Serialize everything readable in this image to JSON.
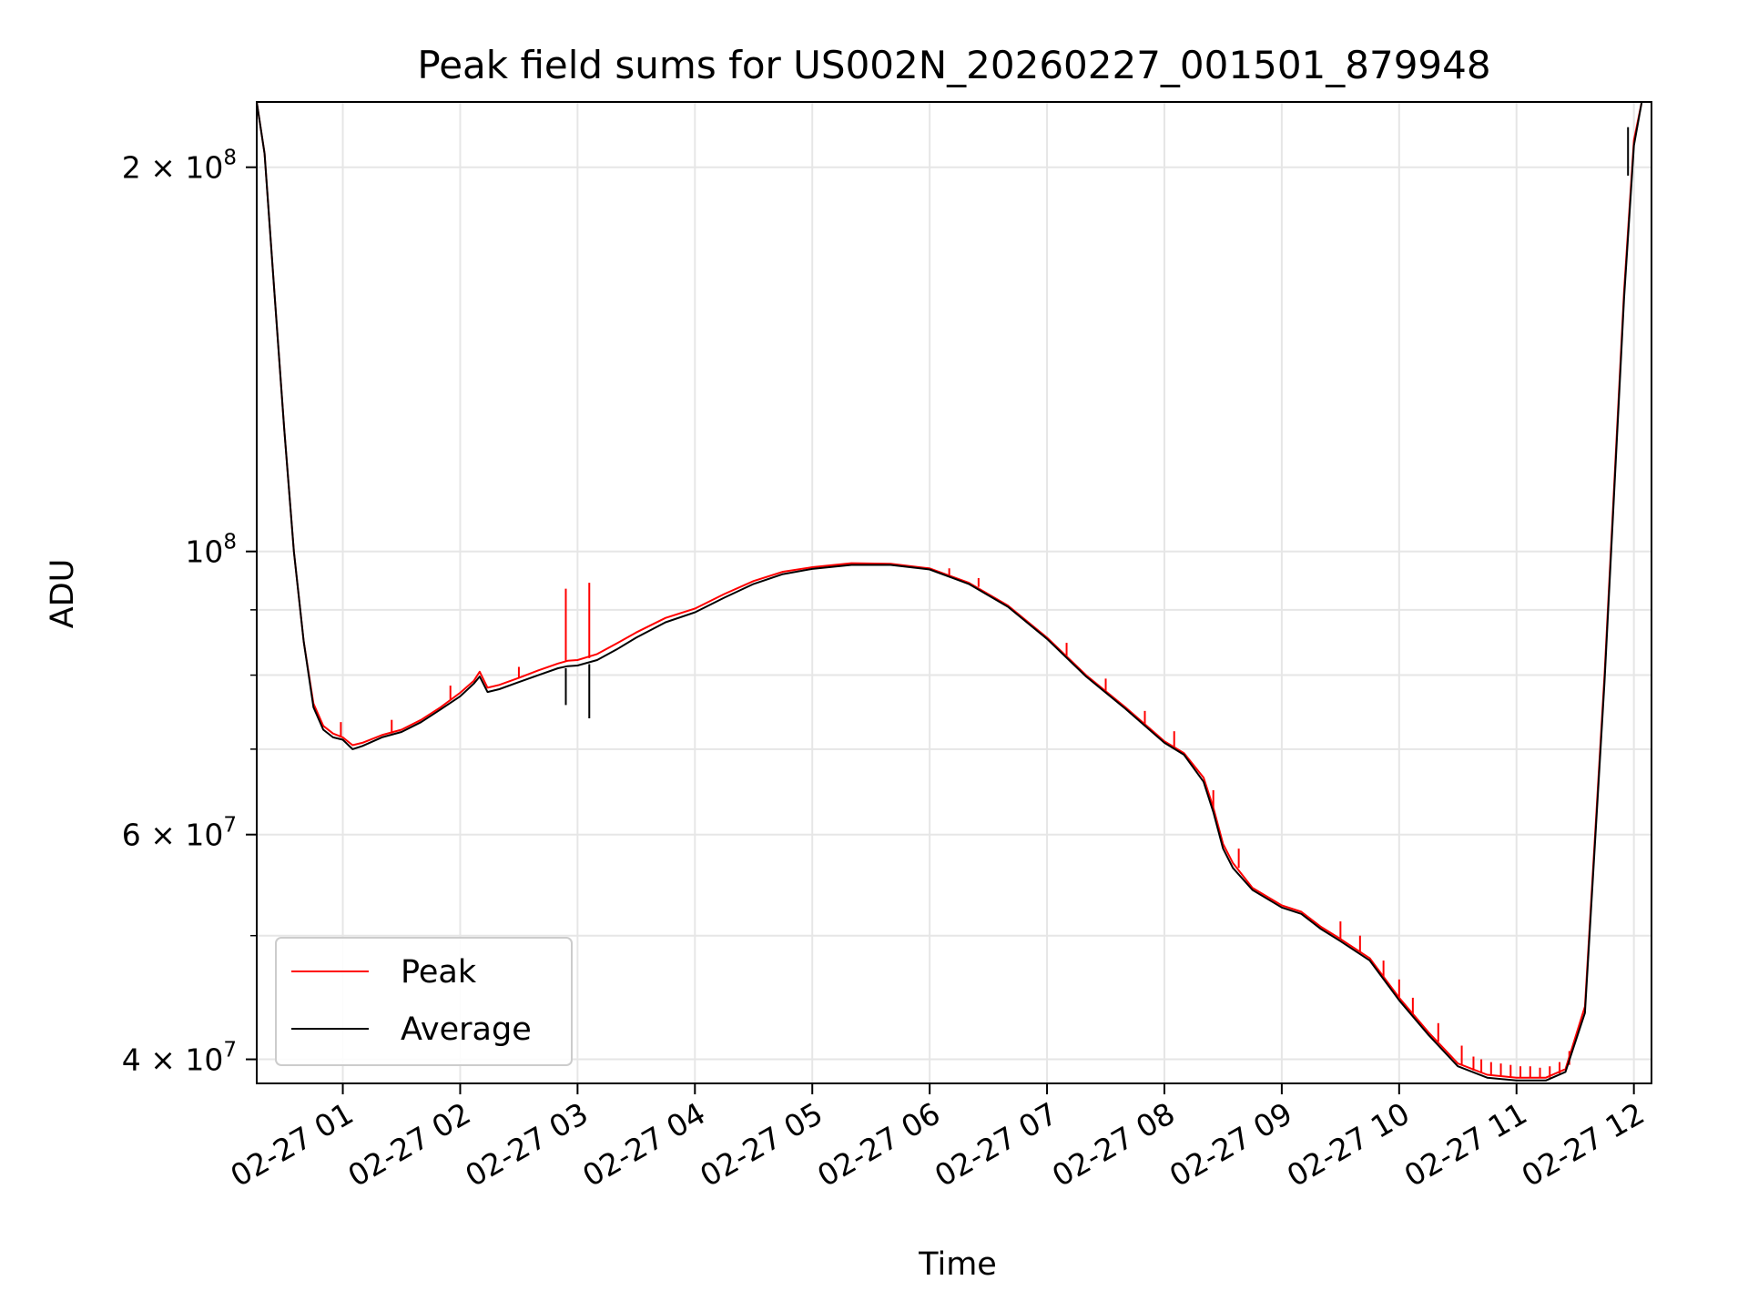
{
  "chart_data": {
    "type": "line",
    "title": "Peak field sums for US002N_20260227_001501_879948",
    "xlabel": "Time",
    "ylabel": "ADU",
    "y_scale": "log",
    "grid": true,
    "legend_position": "lower-left",
    "x_ticks": [
      "02-27 01",
      "02-27 02",
      "02-27 03",
      "02-27 04",
      "02-27 05",
      "02-27 06",
      "02-27 07",
      "02-27 08",
      "02-27 09",
      "02-27 10",
      "02-27 11",
      "02-27 12"
    ],
    "y_ticks": [
      {
        "value": 40000000,
        "label": "4 × 10",
        "exp": "7"
      },
      {
        "value": 60000000,
        "label": "6 × 10",
        "exp": "7"
      },
      {
        "value": 100000000,
        "label": "10",
        "exp": "8"
      },
      {
        "value": 200000000,
        "label": "2 × 10",
        "exp": "8"
      }
    ],
    "x_range": [
      "02-27 00:16",
      "02-27 12:09"
    ],
    "ylim": [
      38300000,
      225000000
    ],
    "series": [
      {
        "name": "Peak",
        "color": "#ff0000",
        "points": [
          [
            "02-27 00:16",
            225000000
          ],
          [
            "02-27 00:20",
            205000000
          ],
          [
            "02-27 00:25",
            160000000
          ],
          [
            "02-27 00:30",
            125000000
          ],
          [
            "02-27 00:35",
            100000000
          ],
          [
            "02-27 00:40",
            85000000
          ],
          [
            "02-27 00:45",
            76000000
          ],
          [
            "02-27 00:50",
            73000000
          ],
          [
            "02-27 00:55",
            72000000
          ],
          [
            "02-27 01:00",
            71500000
          ],
          [
            "02-27 01:05",
            70500000
          ],
          [
            "02-27 01:10",
            70800000
          ],
          [
            "02-27 01:20",
            71800000
          ],
          [
            "02-27 01:30",
            72500000
          ],
          [
            "02-27 01:40",
            73800000
          ],
          [
            "02-27 01:50",
            75500000
          ],
          [
            "02-27 02:00",
            77500000
          ],
          [
            "02-27 02:07",
            79200000
          ],
          [
            "02-27 02:10",
            80500000
          ],
          [
            "02-27 02:14",
            78200000
          ],
          [
            "02-27 02:20",
            78600000
          ],
          [
            "02-27 02:30",
            79600000
          ],
          [
            "02-27 02:40",
            80700000
          ],
          [
            "02-27 02:50",
            81700000
          ],
          [
            "02-27 02:55",
            82100000
          ],
          [
            "02-27 03:00",
            82200000
          ],
          [
            "02-27 03:10",
            83100000
          ],
          [
            "02-27 03:20",
            84700000
          ],
          [
            "02-27 03:30",
            86400000
          ],
          [
            "02-27 03:45",
            88700000
          ],
          [
            "02-27 04:00",
            90200000
          ],
          [
            "02-27 04:15",
            92600000
          ],
          [
            "02-27 04:30",
            94800000
          ],
          [
            "02-27 04:45",
            96400000
          ],
          [
            "02-27 05:00",
            97200000
          ],
          [
            "02-27 05:20",
            97900000
          ],
          [
            "02-27 05:40",
            97800000
          ],
          [
            "02-27 06:00",
            97000000
          ],
          [
            "02-27 06:20",
            94500000
          ],
          [
            "02-27 06:40",
            90700000
          ],
          [
            "02-27 07:00",
            85600000
          ],
          [
            "02-27 07:20",
            80000000
          ],
          [
            "02-27 07:40",
            75500000
          ],
          [
            "02-27 08:00",
            71000000
          ],
          [
            "02-27 08:10",
            69500000
          ],
          [
            "02-27 08:20",
            66500000
          ],
          [
            "02-27 08:25",
            63000000
          ],
          [
            "02-27 08:30",
            59000000
          ],
          [
            "02-27 08:35",
            57000000
          ],
          [
            "02-27 08:45",
            54500000
          ],
          [
            "02-27 09:00",
            52800000
          ],
          [
            "02-27 09:10",
            52200000
          ],
          [
            "02-27 09:20",
            50800000
          ],
          [
            "02-27 09:30",
            49700000
          ],
          [
            "02-27 09:45",
            48000000
          ],
          [
            "02-27 10:00",
            44700000
          ],
          [
            "02-27 10:15",
            42000000
          ],
          [
            "02-27 10:30",
            39700000
          ],
          [
            "02-27 10:45",
            38900000
          ],
          [
            "02-27 11:00",
            38700000
          ],
          [
            "02-27 11:15",
            38700000
          ],
          [
            "02-27 11:25",
            39300000
          ],
          [
            "02-27 11:35",
            44000000
          ],
          [
            "02-27 11:45",
            80000000
          ],
          [
            "02-27 11:55",
            160000000
          ],
          [
            "02-27 12:00",
            210000000
          ],
          [
            "02-27 12:04",
            225000000
          ]
        ],
        "spikes": [
          [
            "02-27 02:54",
            82000000,
            93500000
          ],
          [
            "02-27 03:06",
            82500000,
            94500000
          ],
          [
            "02-27 00:59",
            71500000,
            73500000
          ],
          [
            "02-27 01:25",
            72000000,
            73800000
          ],
          [
            "02-27 01:55",
            76500000,
            78500000
          ],
          [
            "02-27 02:30",
            79600000,
            81200000
          ],
          [
            "02-27 06:10",
            95800000,
            97000000
          ],
          [
            "02-27 06:25",
            93800000,
            95300000
          ],
          [
            "02-27 07:10",
            82800000,
            84800000
          ],
          [
            "02-27 07:30",
            77500000,
            79500000
          ],
          [
            "02-27 07:50",
            73000000,
            75000000
          ],
          [
            "02-27 08:05",
            70300000,
            72300000
          ],
          [
            "02-27 08:25",
            63000000,
            65000000
          ],
          [
            "02-27 08:38",
            56500000,
            58500000
          ],
          [
            "02-27 09:30",
            49700000,
            51300000
          ],
          [
            "02-27 09:40",
            48600000,
            50000000
          ],
          [
            "02-27 09:52",
            46200000,
            47800000
          ],
          [
            "02-27 10:00",
            44700000,
            46200000
          ],
          [
            "02-27 10:07",
            43400000,
            44700000
          ],
          [
            "02-27 10:20",
            41300000,
            42700000
          ],
          [
            "02-27 10:32",
            39600000,
            41000000
          ],
          [
            "02-27 10:38",
            39200000,
            40200000
          ],
          [
            "02-27 10:42",
            39000000,
            40000000
          ],
          [
            "02-27 10:47",
            38900000,
            39800000
          ],
          [
            "02-27 10:52",
            38800000,
            39700000
          ],
          [
            "02-27 10:57",
            38700000,
            39600000
          ],
          [
            "02-27 11:02",
            38700000,
            39500000
          ],
          [
            "02-27 11:07",
            38700000,
            39500000
          ],
          [
            "02-27 11:12",
            38700000,
            39400000
          ],
          [
            "02-27 11:17",
            38700000,
            39500000
          ],
          [
            "02-27 11:22",
            39000000,
            39800000
          ],
          [
            "02-27 11:27",
            39600000,
            40600000
          ]
        ]
      },
      {
        "name": "Average",
        "color": "#000000",
        "points": [
          [
            "02-27 00:16",
            225000000
          ],
          [
            "02-27 00:20",
            205000000
          ],
          [
            "02-27 00:25",
            160000000
          ],
          [
            "02-27 00:30",
            125000000
          ],
          [
            "02-27 00:35",
            100000000
          ],
          [
            "02-27 00:40",
            85000000
          ],
          [
            "02-27 00:45",
            75500000
          ],
          [
            "02-27 00:50",
            72500000
          ],
          [
            "02-27 00:55",
            71500000
          ],
          [
            "02-27 01:00",
            71200000
          ],
          [
            "02-27 01:05",
            70000000
          ],
          [
            "02-27 01:10",
            70400000
          ],
          [
            "02-27 01:20",
            71500000
          ],
          [
            "02-27 01:30",
            72200000
          ],
          [
            "02-27 01:40",
            73500000
          ],
          [
            "02-27 01:50",
            75200000
          ],
          [
            "02-27 02:00",
            77000000
          ],
          [
            "02-27 02:07",
            78800000
          ],
          [
            "02-27 02:10",
            79800000
          ],
          [
            "02-27 02:14",
            77600000
          ],
          [
            "02-27 02:20",
            78000000
          ],
          [
            "02-27 02:30",
            79000000
          ],
          [
            "02-27 02:40",
            80000000
          ],
          [
            "02-27 02:50",
            81000000
          ],
          [
            "02-27 02:55",
            81300000
          ],
          [
            "02-27 03:00",
            81400000
          ],
          [
            "02-27 03:10",
            82200000
          ],
          [
            "02-27 03:20",
            83800000
          ],
          [
            "02-27 03:30",
            85600000
          ],
          [
            "02-27 03:45",
            88000000
          ],
          [
            "02-27 04:00",
            89600000
          ],
          [
            "02-27 04:15",
            92000000
          ],
          [
            "02-27 04:30",
            94300000
          ],
          [
            "02-27 04:45",
            96000000
          ],
          [
            "02-27 05:00",
            96900000
          ],
          [
            "02-27 05:20",
            97600000
          ],
          [
            "02-27 05:40",
            97600000
          ],
          [
            "02-27 06:00",
            96800000
          ],
          [
            "02-27 06:20",
            94300000
          ],
          [
            "02-27 06:40",
            90500000
          ],
          [
            "02-27 07:00",
            85400000
          ],
          [
            "02-27 07:20",
            79800000
          ],
          [
            "02-27 07:40",
            75300000
          ],
          [
            "02-27 08:00",
            70800000
          ],
          [
            "02-27 08:10",
            69300000
          ],
          [
            "02-27 08:20",
            66000000
          ],
          [
            "02-27 08:25",
            62500000
          ],
          [
            "02-27 08:30",
            58500000
          ],
          [
            "02-27 08:35",
            56500000
          ],
          [
            "02-27 08:45",
            54300000
          ],
          [
            "02-27 09:00",
            52600000
          ],
          [
            "02-27 09:10",
            52000000
          ],
          [
            "02-27 09:20",
            50600000
          ],
          [
            "02-27 09:30",
            49500000
          ],
          [
            "02-27 09:45",
            47800000
          ],
          [
            "02-27 10:00",
            44500000
          ],
          [
            "02-27 10:15",
            41800000
          ],
          [
            "02-27 10:30",
            39500000
          ],
          [
            "02-27 10:45",
            38700000
          ],
          [
            "02-27 11:00",
            38500000
          ],
          [
            "02-27 11:15",
            38500000
          ],
          [
            "02-27 11:25",
            39100000
          ],
          [
            "02-27 11:35",
            43500000
          ],
          [
            "02-27 11:45",
            79000000
          ],
          [
            "02-27 11:55",
            158000000
          ],
          [
            "02-27 12:00",
            208000000
          ],
          [
            "02-27 12:04",
            225000000
          ]
        ],
        "spikes": [
          [
            "02-27 02:54",
            81000000,
            75800000
          ],
          [
            "02-27 03:06",
            81600000,
            74000000
          ],
          [
            "02-27 11:57",
            197000000,
            215000000
          ]
        ]
      }
    ]
  }
}
